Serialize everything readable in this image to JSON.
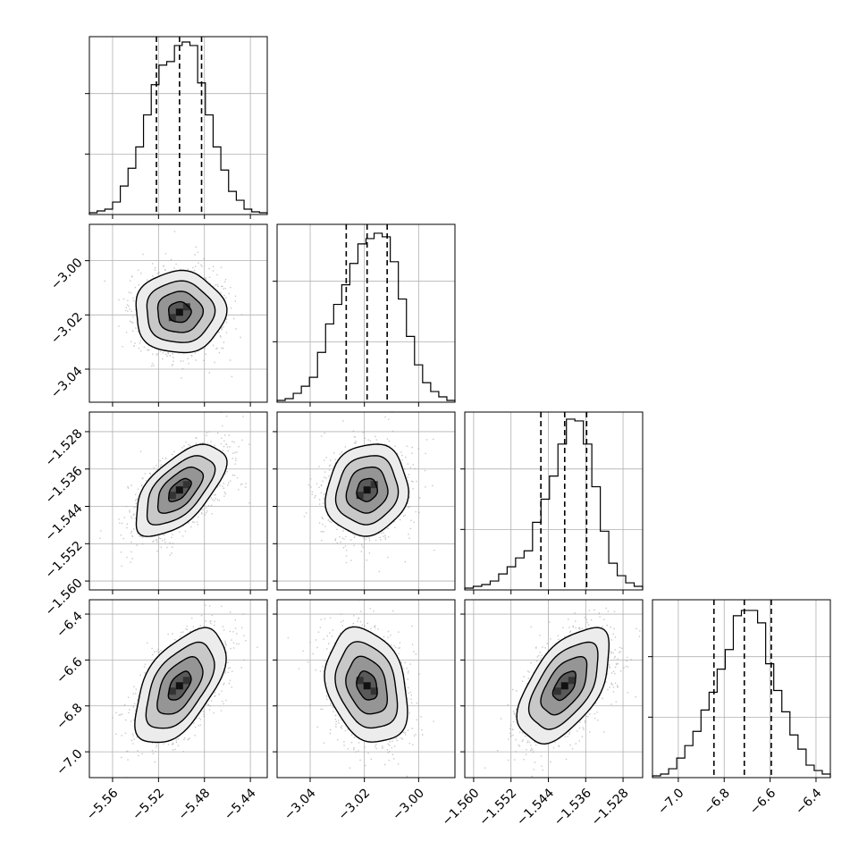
{
  "chart_data": {
    "type": "corner",
    "grid": true,
    "params": [
      {
        "ticks": [
          -5.56,
          -5.52,
          -5.48,
          -5.44
        ],
        "tick_labels": [
          "−5.56",
          "−5.52",
          "−5.48",
          "−5.44"
        ],
        "range": [
          -5.5802,
          -5.4253
        ],
        "quantiles": [
          -5.5218,
          -5.5017,
          -5.4825
        ],
        "hist_bins": [
          0.01,
          0.02,
          0.03,
          0.07,
          0.16,
          0.26,
          0.38,
          0.56,
          0.73,
          0.84,
          0.86,
          0.95,
          0.97,
          0.95,
          0.74,
          0.56,
          0.38,
          0.25,
          0.13,
          0.08,
          0.03,
          0.015,
          0.01
        ]
      },
      {
        "ticks": [
          -3.04,
          -3.02,
          -3.0
        ],
        "tick_labels": [
          "−3.04",
          "−3.02",
          "−3.00"
        ],
        "range": [
          -3.0522,
          -2.9866
        ],
        "quantiles": [
          -3.0267,
          -3.019,
          -3.0116
        ],
        "hist_bins": [
          0.01,
          0.02,
          0.05,
          0.09,
          0.14,
          0.28,
          0.44,
          0.55,
          0.66,
          0.78,
          0.89,
          0.92,
          0.95,
          0.93,
          0.79,
          0.58,
          0.37,
          0.21,
          0.11,
          0.06,
          0.03,
          0.01
        ]
      },
      {
        "ticks": [
          -1.56,
          -1.552,
          -1.544,
          -1.536,
          -1.528
        ],
        "tick_labels": [
          "−1.560",
          "−1.552",
          "−1.544",
          "−1.536",
          "−1.528"
        ],
        "range": [
          -1.5619,
          -1.5238
        ],
        "quantiles": [
          -1.5456,
          -1.5405,
          -1.5358
        ],
        "hist_bins": [
          0.01,
          0.02,
          0.03,
          0.05,
          0.09,
          0.13,
          0.18,
          0.22,
          0.38,
          0.51,
          0.64,
          0.82,
          0.96,
          0.95,
          0.82,
          0.58,
          0.33,
          0.15,
          0.08,
          0.04,
          0.02
        ]
      },
      {
        "ticks": [
          -7.0,
          -6.8,
          -6.6,
          -6.4
        ],
        "tick_labels": [
          "−7.0",
          "−6.8",
          "−6.6",
          "−6.4"
        ],
        "range": [
          -7.1125,
          -6.3375
        ],
        "quantiles": [
          -6.8447,
          -6.7124,
          -6.5949
        ],
        "hist_bins": [
          0.01,
          0.02,
          0.05,
          0.11,
          0.18,
          0.26,
          0.38,
          0.48,
          0.61,
          0.72,
          0.91,
          0.94,
          0.94,
          0.87,
          0.64,
          0.49,
          0.37,
          0.24,
          0.16,
          0.07,
          0.04,
          0.02
        ]
      }
    ],
    "correlations": [
      [
        1.0,
        0.0,
        0.6,
        0.55
      ],
      [
        0.0,
        1.0,
        0.1,
        -0.25
      ],
      [
        0.6,
        0.1,
        1.0,
        0.55
      ],
      [
        0.55,
        -0.25,
        0.55,
        1.0
      ]
    ],
    "contour_levels_sigma": [
      0.5,
      1.0,
      1.5,
      2.0
    ]
  }
}
